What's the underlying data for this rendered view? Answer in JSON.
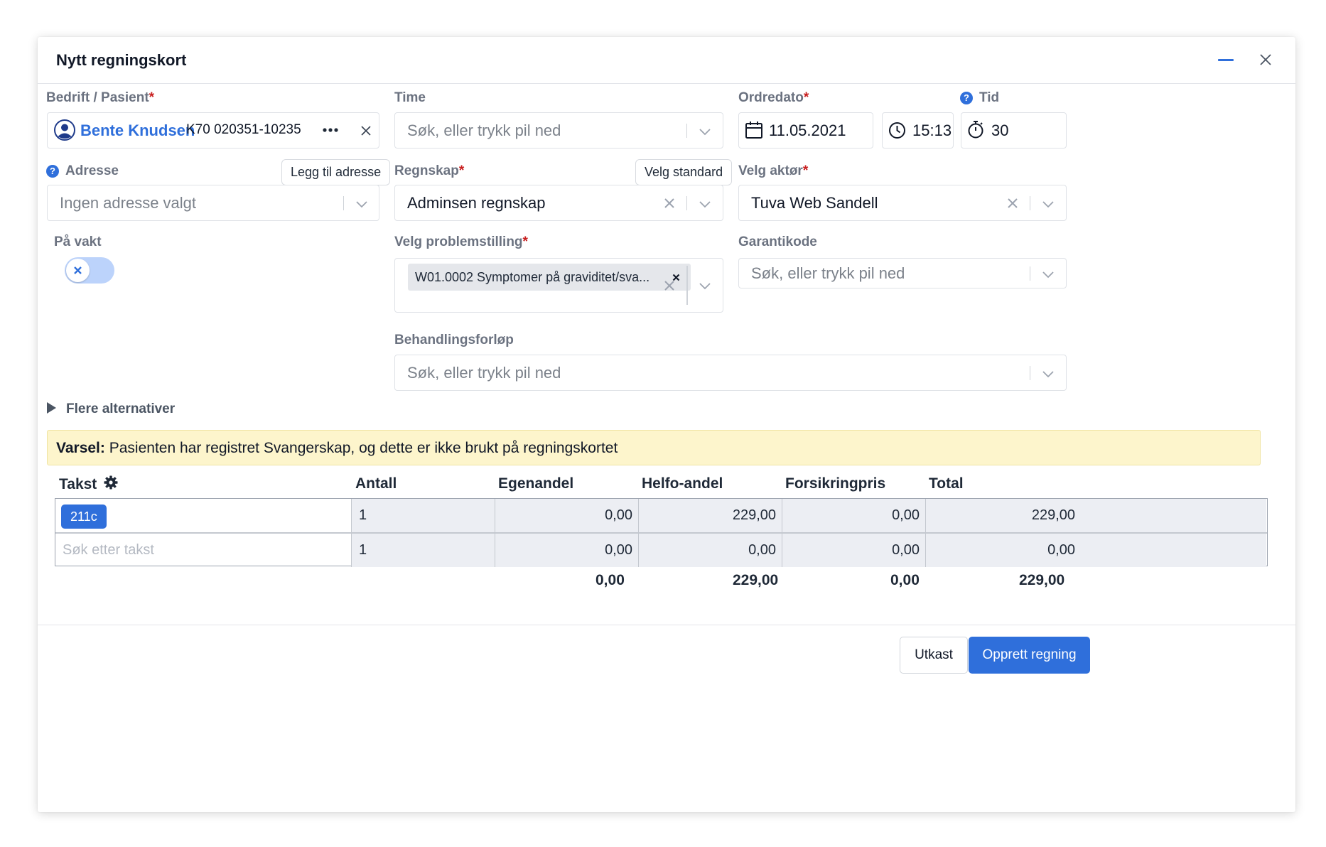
{
  "dialog": {
    "title": "Nytt regningskort"
  },
  "company_patient": {
    "label": "Bedrift / Pasient",
    "name": "Bente Knudsen",
    "id": "K70 020351-10235"
  },
  "time": {
    "label": "Time",
    "placeholder": "Søk, eller trykk pil ned"
  },
  "order_date": {
    "label": "Ordredato",
    "date": "11.05.2021",
    "clock": "15:13"
  },
  "duration": {
    "label": "Tid",
    "value": "30"
  },
  "address": {
    "label": "Adresse",
    "add_button": "Legg til adresse",
    "placeholder": "Ingen adresse valgt"
  },
  "accounting": {
    "label": "Regnskap",
    "standard_button": "Velg standard",
    "value": "Adminsen regnskap"
  },
  "actor": {
    "label": "Velg aktør",
    "value": "Tuva Web Sandell"
  },
  "on_call": {
    "label": "På vakt",
    "enabled": false
  },
  "problem": {
    "label": "Velg problemstilling",
    "tag": "W01.0002 Symptomer på graviditet/sva..."
  },
  "warranty": {
    "label": "Garantikode",
    "placeholder": "Søk, eller trykk pil ned"
  },
  "treatment": {
    "label": "Behandlingsforløp",
    "placeholder": "Søk, eller trykk pil ned"
  },
  "more_options": "Flere alternativer",
  "warning": {
    "prefix": "Varsel:",
    "text": "Pasienten har registret Svangerskap, og dette er ikke brukt på regningskortet"
  },
  "table": {
    "headers": [
      "Takst",
      "Antall",
      "Egenandel",
      "Helfo-andel",
      "Forsikringpris",
      "Total"
    ],
    "rows": [
      {
        "takst": "211c",
        "antall": "1",
        "egenandel": "0,00",
        "helfo": "229,00",
        "forsikring": "0,00",
        "total": "229,00"
      },
      {
        "takst_placeholder": "Søk etter takst",
        "antall": "1",
        "egenandel": "0,00",
        "helfo": "0,00",
        "forsikring": "0,00",
        "total": "0,00"
      }
    ],
    "totals": {
      "egenandel": "0,00",
      "helfo": "229,00",
      "forsikring": "0,00",
      "total": "229,00"
    }
  },
  "footer": {
    "draft_button": "Utkast",
    "create_button": "Opprett regning"
  },
  "colors": {
    "accent": "#2f6fdb",
    "required": "#c81e1e",
    "warning_bg": "#fdf5cc"
  }
}
